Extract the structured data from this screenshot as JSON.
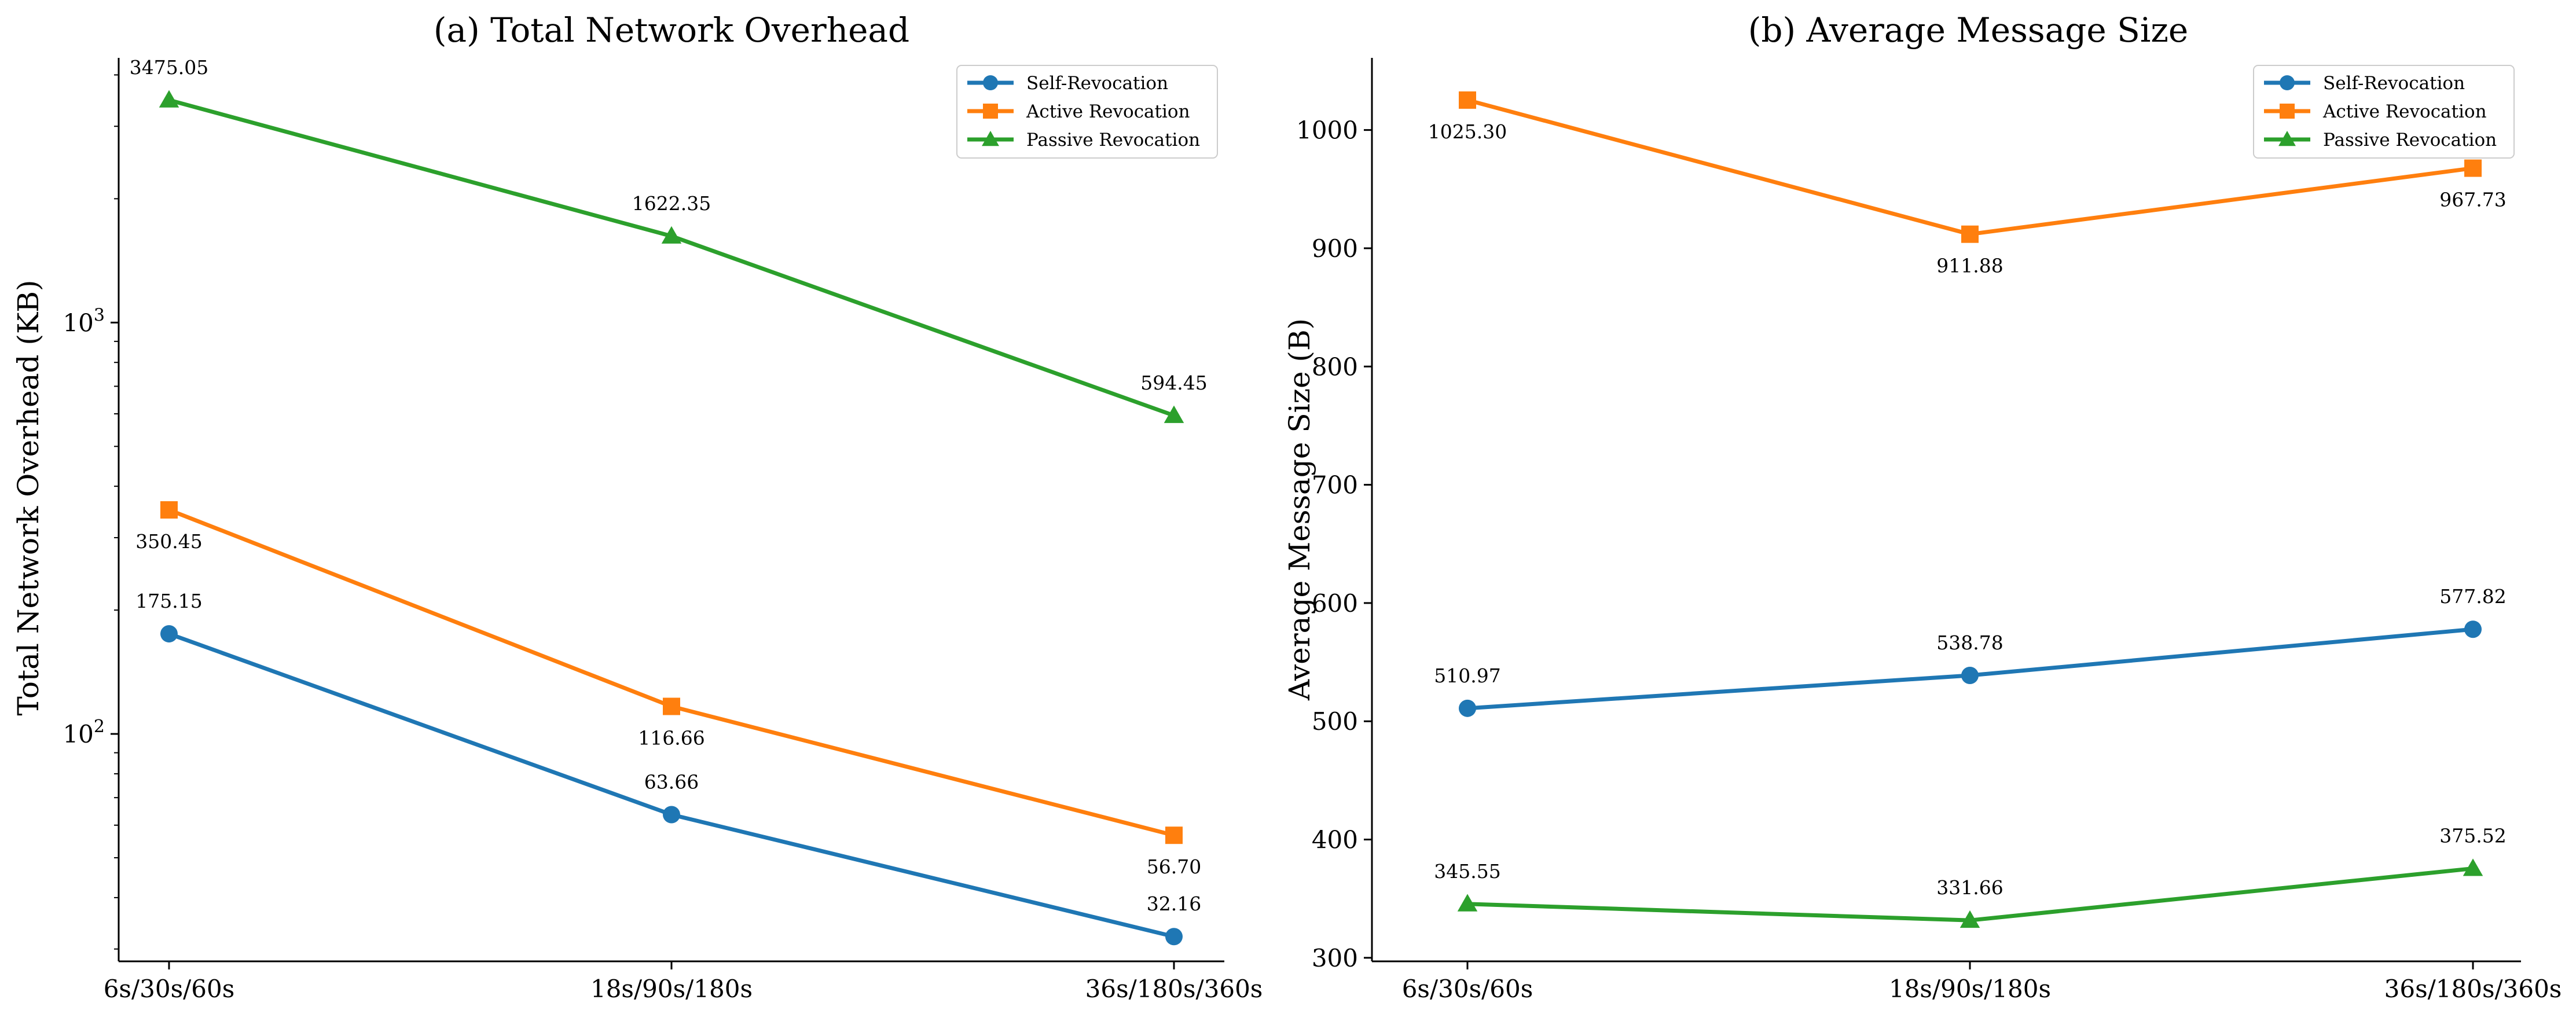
{
  "chart_data": [
    {
      "type": "line",
      "title": "(a) Total Network Overhead",
      "xlabel": "",
      "ylabel": "Total Network Overhead (KB)",
      "yscale": "log",
      "ylim": [
        28,
        4400
      ],
      "yticks": [
        {
          "value": 100,
          "base": "10",
          "exp": "2"
        },
        {
          "value": 1000,
          "base": "10",
          "exp": "3"
        }
      ],
      "grid": false,
      "legend": "top-right",
      "categories": [
        "6s/30s/60s",
        "18s/90s/180s",
        "36s/180s/360s"
      ],
      "series": [
        {
          "name": "Self-Revocation",
          "color": "#1f77b4",
          "marker": "circle",
          "values": [
            175.15,
            63.66,
            32.16
          ],
          "labels": [
            "175.15",
            "63.66",
            "32.16"
          ]
        },
        {
          "name": "Active Revocation",
          "color": "#ff7f0e",
          "marker": "square",
          "values": [
            350.45,
            116.66,
            56.7
          ],
          "labels": [
            "350.45",
            "116.66",
            "56.70"
          ]
        },
        {
          "name": "Passive Revocation",
          "color": "#2ca02c",
          "marker": "triangle",
          "values": [
            3475.05,
            1622.35,
            594.45
          ],
          "labels": [
            "3475.05",
            "1622.35",
            "594.45"
          ]
        }
      ]
    },
    {
      "type": "line",
      "title": "(b) Average Message Size",
      "xlabel": "",
      "ylabel": "Average Message Size (B)",
      "yscale": "linear",
      "ylim": [
        297,
        1061
      ],
      "yticks": [
        {
          "value": 300,
          "label": "300"
        },
        {
          "value": 400,
          "label": "400"
        },
        {
          "value": 500,
          "label": "500"
        },
        {
          "value": 600,
          "label": "600"
        },
        {
          "value": 700,
          "label": "700"
        },
        {
          "value": 800,
          "label": "800"
        },
        {
          "value": 900,
          "label": "900"
        },
        {
          "value": 1000,
          "label": "1000"
        }
      ],
      "grid": false,
      "legend": "top-right",
      "categories": [
        "6s/30s/60s",
        "18s/90s/180s",
        "36s/180s/360s"
      ],
      "series": [
        {
          "name": "Self-Revocation",
          "color": "#1f77b4",
          "marker": "circle",
          "values": [
            510.97,
            538.78,
            577.82
          ],
          "labels": [
            "510.97",
            "538.78",
            "577.82"
          ]
        },
        {
          "name": "Active Revocation",
          "color": "#ff7f0e",
          "marker": "square",
          "values": [
            1025.3,
            911.88,
            967.73
          ],
          "labels": [
            "1025.30",
            "911.88",
            "967.73"
          ]
        },
        {
          "name": "Passive Revocation",
          "color": "#2ca02c",
          "marker": "triangle",
          "values": [
            345.55,
            331.66,
            375.52
          ],
          "labels": [
            "345.55",
            "331.66",
            "375.52"
          ]
        }
      ]
    }
  ]
}
